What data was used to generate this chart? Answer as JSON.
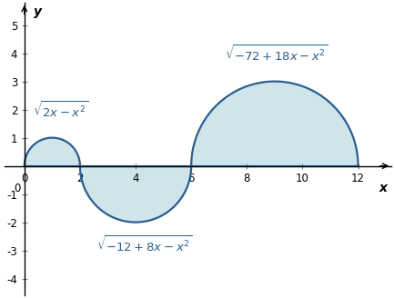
{
  "title": "",
  "xlabel": "x",
  "ylabel": "y",
  "xlim": [
    -0.7,
    13.2
  ],
  "ylim": [
    -4.6,
    5.8
  ],
  "xticks": [
    0,
    2,
    4,
    6,
    8,
    10,
    12
  ],
  "yticks": [
    -4,
    -3,
    -2,
    -1,
    1,
    2,
    3,
    4,
    5
  ],
  "fill_color": "#b8d8e0",
  "fill_alpha": 0.65,
  "line_color": "#2a6090",
  "line_width": 1.6,
  "ann1_text": "$\\sqrt{2x-x^2}$",
  "ann1_x": 0.3,
  "ann1_y": 1.65,
  "ann2_text": "$\\sqrt{-12+8x-x^2}$",
  "ann2_x": 2.6,
  "ann2_y": -2.45,
  "ann3_text": "$\\sqrt{-72+18x-x^2}$",
  "ann3_x": 7.2,
  "ann3_y": 3.65,
  "ann_fontsize": 9.5,
  "ann_color": "#2a6090"
}
